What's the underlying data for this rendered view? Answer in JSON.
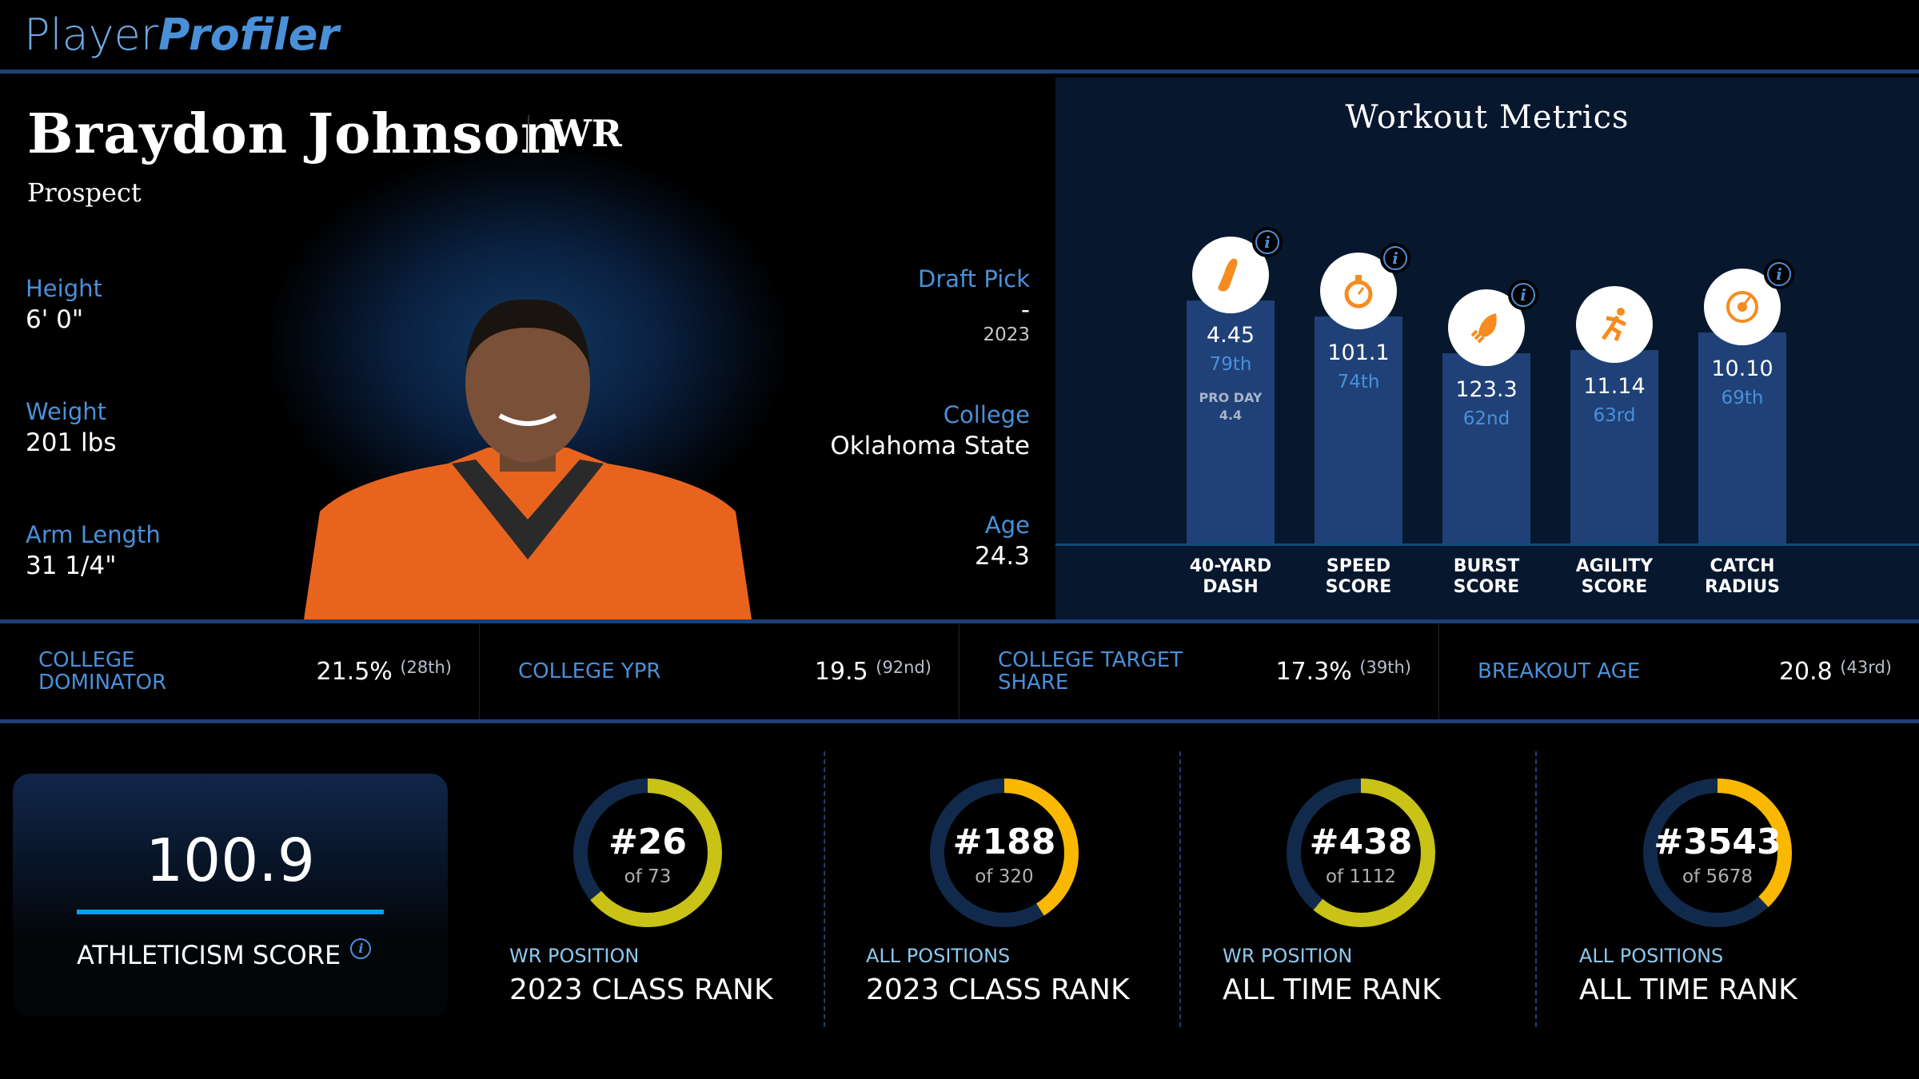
{
  "header": {
    "logo_part1": "Player",
    "logo_part2": "Profiler"
  },
  "player": {
    "name": "Braydon Johnson",
    "position": "WR",
    "status": "Prospect"
  },
  "bio_left": [
    {
      "label": "Height",
      "value": "6' 0\""
    },
    {
      "label": "Weight",
      "value": "201 lbs"
    },
    {
      "label": "Arm Length",
      "value": "31 1/4\""
    }
  ],
  "bio_right": {
    "draft_label": "Draft Pick",
    "draft_value": "-",
    "draft_year": "2023",
    "college_label": "College",
    "college_value": "Oklahoma State",
    "age_label": "Age",
    "age_value": "24.3"
  },
  "workout": {
    "title": "Workout Metrics",
    "metrics": [
      {
        "label1": "40-YARD",
        "label2": "DASH",
        "value": "4.45",
        "percentile": "79th",
        "extra_label": "PRO DAY",
        "extra_value": "4.4",
        "icon": "shoe-icon",
        "info": true
      },
      {
        "label1": "SPEED",
        "label2": "SCORE",
        "value": "101.1",
        "percentile": "74th",
        "icon": "stopwatch-icon",
        "info": true
      },
      {
        "label1": "BURST",
        "label2": "SCORE",
        "value": "123.3",
        "percentile": "62nd",
        "icon": "rocket-icon",
        "info": true
      },
      {
        "label1": "AGILITY",
        "label2": "SCORE",
        "value": "11.14",
        "percentile": "63rd",
        "icon": "runner-icon",
        "info": false
      },
      {
        "label1": "CATCH",
        "label2": "RADIUS",
        "value": "10.10",
        "percentile": "69th",
        "icon": "target-icon",
        "info": true
      }
    ]
  },
  "stats": [
    {
      "label": "COLLEGE DOMINATOR",
      "value": "21.5%",
      "rank": "(28th)"
    },
    {
      "label": "COLLEGE YPR",
      "value": "19.5",
      "rank": "(92nd)"
    },
    {
      "label": "COLLEGE TARGET SHARE",
      "value": "17.3%",
      "rank": "(39th)"
    },
    {
      "label": "BREAKOUT AGE",
      "value": "20.8",
      "rank": "(43rd)"
    }
  ],
  "athleticism": {
    "score": "100.9",
    "label": "ATHLETICISM SCORE"
  },
  "ranks": [
    {
      "rank": "#26",
      "of": "of 73",
      "fill": 0.64,
      "color": "#c9c217",
      "sub": "WR POSITION",
      "main": "2023 CLASS RANK"
    },
    {
      "rank": "#188",
      "of": "of 320",
      "fill": 0.41,
      "color": "#fbb800",
      "sub": "ALL POSITIONS",
      "main": "2023 CLASS RANK"
    },
    {
      "rank": "#438",
      "of": "of 1112",
      "fill": 0.61,
      "color": "#c9c217",
      "sub": "WR POSITION",
      "main": "ALL TIME RANK"
    },
    {
      "rank": "#3543",
      "of": "of 5678",
      "fill": 0.38,
      "color": "#fbb800",
      "sub": "ALL POSITIONS",
      "main": "ALL TIME RANK"
    }
  ],
  "colors": {
    "accent": "#4a90d9",
    "track": "#112a4b",
    "bar": "#1f4178",
    "icon": "#f68b1f"
  }
}
